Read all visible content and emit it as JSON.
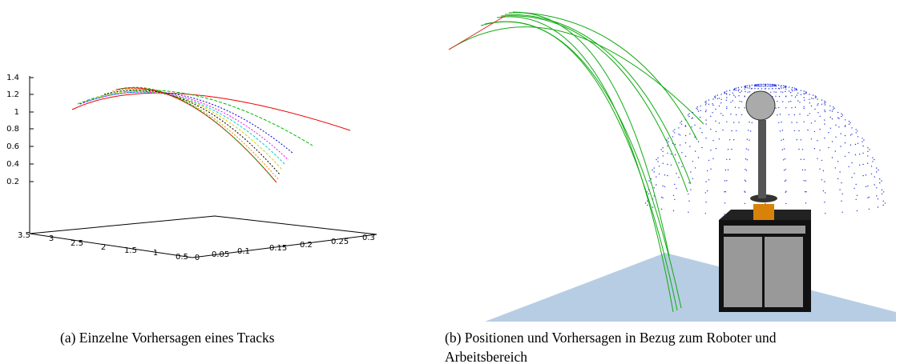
{
  "figure": {
    "panel_a": {
      "z_ticks": [
        1.4,
        1.2,
        1,
        0.8,
        0.6,
        0.4,
        0.2
      ],
      "x_ticks": [
        3.5,
        3,
        2.5,
        2,
        1.5,
        1,
        0.5,
        0
      ],
      "y_ticks": [
        0.05,
        0.1,
        0.15,
        0.2,
        0.25,
        0.3
      ],
      "caption": "(a) Einzelne Vorhersagen eines Tracks"
    },
    "panel_b": {
      "caption_lines": [
        "(b) Positionen und Vorhersagen in Bezug zum Roboter und",
        "Arbeitsbereich"
      ]
    }
  }
}
